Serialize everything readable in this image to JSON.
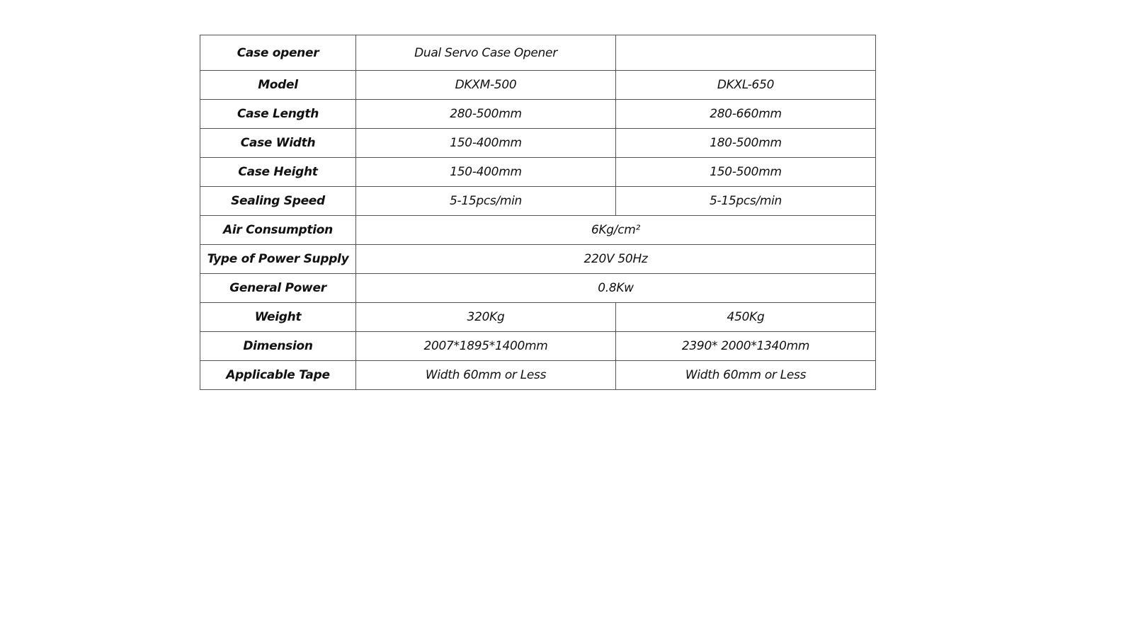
{
  "spec_table": {
    "rows": [
      {
        "label": "Case opener",
        "values": [
          "Dual Servo Case Opener",
          ""
        ]
      },
      {
        "label": "Model",
        "values": [
          "DKXM-500",
          "DKXL-650"
        ]
      },
      {
        "label": "Case Length",
        "values": [
          "280-500mm",
          "280-660mm"
        ]
      },
      {
        "label": "Case Width",
        "values": [
          "150-400mm",
          "180-500mm"
        ]
      },
      {
        "label": "Case Height",
        "values": [
          "150-400mm",
          "150-500mm"
        ]
      },
      {
        "label": "Sealing Speed",
        "values": [
          "5-15pcs/min",
          "5-15pcs/min"
        ]
      },
      {
        "label": "Air Consumption",
        "values": [
          "6Kg/cm²"
        ]
      },
      {
        "label": "Type of Power Supply",
        "values": [
          "220V 50Hz"
        ]
      },
      {
        "label": "General Power",
        "values": [
          "0.8Kw"
        ]
      },
      {
        "label": "Weight",
        "values": [
          "320Kg",
          "450Kg"
        ]
      },
      {
        "label": "Dimension",
        "values": [
          "2007*1895*1400mm",
          "2390* 2000*1340mm"
        ]
      },
      {
        "label": "Applicable Tape",
        "values": [
          "Width 60mm or Less",
          "Width 60mm or Less"
        ]
      }
    ]
  }
}
